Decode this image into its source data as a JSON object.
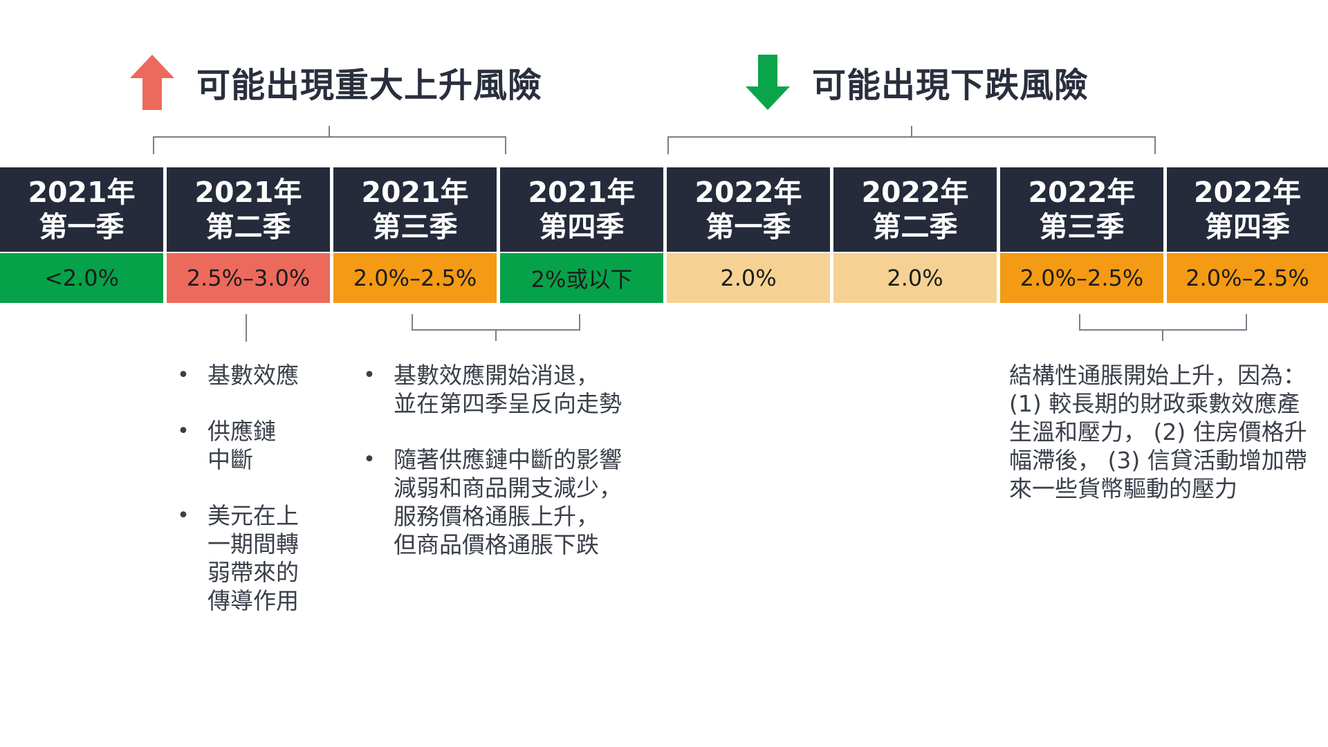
{
  "headings": {
    "upside": "可能出現重大上升風險",
    "downside": "可能出現下跌風險"
  },
  "colors": {
    "dark": "#252b3b",
    "green": "#06a24a",
    "red": "#ec6a5c",
    "orange": "#f49a14",
    "light_orange": "#f5d293",
    "arrow_up": "#ec6a5c",
    "arrow_down": "#0aa54a"
  },
  "timeline": [
    {
      "year": "2021年",
      "quarter": "第一季",
      "value": "<2.0%",
      "color": "#06a24a"
    },
    {
      "year": "2021年",
      "quarter": "第二季",
      "value": "2.5%–3.0%",
      "color": "#ec6a5c"
    },
    {
      "year": "2021年",
      "quarter": "第三季",
      "value": "2.0%–2.5%",
      "color": "#f49a14"
    },
    {
      "year": "2021年",
      "quarter": "第四季",
      "value": "2%或以下",
      "color": "#06a24a"
    },
    {
      "year": "2022年",
      "quarter": "第一季",
      "value": "2.0%",
      "color": "#f5d293"
    },
    {
      "year": "2022年",
      "quarter": "第二季",
      "value": "2.0%",
      "color": "#f5d293"
    },
    {
      "year": "2022年",
      "quarter": "第三季",
      "value": "2.0%–2.5%",
      "color": "#f49a14"
    },
    {
      "year": "2022年",
      "quarter": "第四季",
      "value": "2.0%–2.5%",
      "color": "#f49a14"
    }
  ],
  "notes_q2": {
    "items": [
      {
        "lines": [
          "基數效應"
        ]
      },
      {
        "lines": [
          "供應鏈",
          "中斷"
        ]
      },
      {
        "lines": [
          "美元在上",
          "一期間轉",
          "弱帶來的",
          "傳導作用"
        ]
      }
    ]
  },
  "notes_q3q4": {
    "items": [
      {
        "lines": [
          "基數效應開始消退，",
          "並在第四季呈反向走勢"
        ]
      },
      {
        "lines": [
          "隨著供應鏈中斷的影響",
          "減弱和商品開支減少，",
          "服務價格通脹上升，",
          "但商品價格通脹下跌"
        ]
      }
    ]
  },
  "notes_2022": {
    "lines": [
      "結構性通脹開始上升，因為：",
      "(1) 較長期的財政乘數效應產",
      "生溫和壓力， (2) 住房價格升",
      "幅滯後， (3) 信貸活動增加帶",
      "來一些貨幣驅動的壓力"
    ]
  }
}
